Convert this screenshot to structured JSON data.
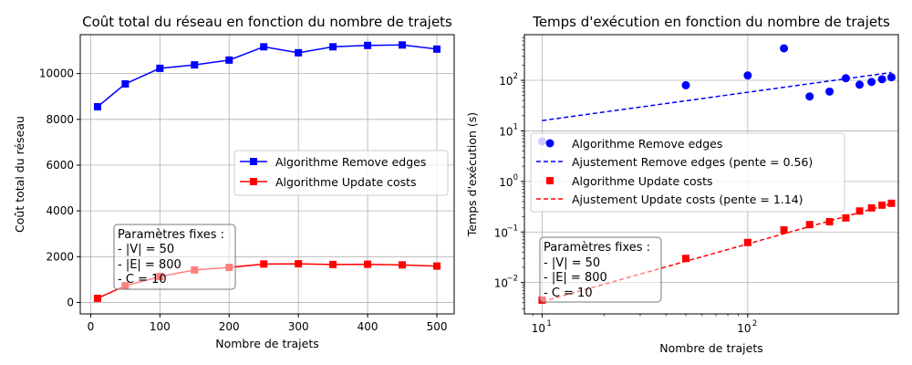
{
  "chart_data": [
    {
      "type": "line",
      "title": "Coût total du réseau en fonction du nombre de trajets",
      "xlabel": "Nombre de trajets",
      "ylabel": "Coût total du réseau",
      "xlim": [
        -15,
        525
      ],
      "ylim": [
        -500,
        11700
      ],
      "xticks": [
        "0",
        "100",
        "200",
        "300",
        "400",
        "500"
      ],
      "yticks": [
        "0",
        "2000",
        "4000",
        "6000",
        "8000",
        "10000"
      ],
      "grid": true,
      "legend_position": "center-right",
      "x": [
        10,
        50,
        100,
        150,
        200,
        250,
        300,
        350,
        400,
        450,
        500
      ],
      "series": [
        {
          "name": "Algorithme Remove edges",
          "color": "#0000ff",
          "marker": "square",
          "values": [
            8550,
            9550,
            10230,
            10380,
            10590,
            11170,
            10910,
            11170,
            11230,
            11250,
            11070
          ]
        },
        {
          "name": "Algorithme Update costs",
          "color": "#ff0000",
          "marker": "square",
          "values": [
            180,
            730,
            1130,
            1420,
            1530,
            1680,
            1690,
            1660,
            1670,
            1640,
            1590
          ]
        }
      ],
      "annotation": [
        "Paramètres fixes :",
        "- |V| = 50",
        "- |E| = 800",
        "- C = 10"
      ]
    },
    {
      "type": "scatter",
      "title": "Temps d'exécution en fonction du nombre de trajets",
      "xlabel": "Nombre de trajets",
      "ylabel": "Temps d'exécution (s)",
      "xscale": "log",
      "yscale": "log",
      "xlim": [
        8.2,
        540
      ],
      "ylim": [
        0.0024,
        800
      ],
      "xticks": [
        "10",
        "10"
      ],
      "xtick_exponents": [
        "1",
        "2"
      ],
      "yticks": [
        "10",
        "10",
        "10",
        "10",
        "10",
        "10"
      ],
      "ytick_exponents": [
        "−2",
        "−1",
        "0",
        "1",
        "2",
        ""
      ],
      "grid": true,
      "legend_position": "center-left",
      "x": [
        10,
        50,
        100,
        150,
        200,
        250,
        300,
        350,
        400,
        450,
        500
      ],
      "series": [
        {
          "name": "Algorithme Remove edges",
          "color": "#0000ff",
          "marker": "circle",
          "values": [
            6.2,
            80,
            125,
            430,
            48,
            60,
            110,
            82,
            93,
            105,
            115
          ]
        },
        {
          "name": "Ajustement Remove edges (pente = 0.56)",
          "color": "#0000ff",
          "style": "dashed",
          "x_fit": [
            10,
            500
          ],
          "values": [
            16,
            143
          ]
        },
        {
          "name": "Algorithme Update costs",
          "color": "#ff0000",
          "marker": "square",
          "values": [
            0.0045,
            0.03,
            0.062,
            0.11,
            0.14,
            0.16,
            0.19,
            0.26,
            0.3,
            0.34,
            0.37
          ]
        },
        {
          "name": "Ajustement Update costs (pente = 1.14)",
          "color": "#ff0000",
          "style": "dashed",
          "x_fit": [
            10,
            500
          ],
          "values": [
            0.0042,
            0.365
          ]
        }
      ],
      "annotation": [
        "Paramètres fixes :",
        "- |V| = 50",
        "- |E| = 800",
        "- C = 10"
      ]
    }
  ]
}
